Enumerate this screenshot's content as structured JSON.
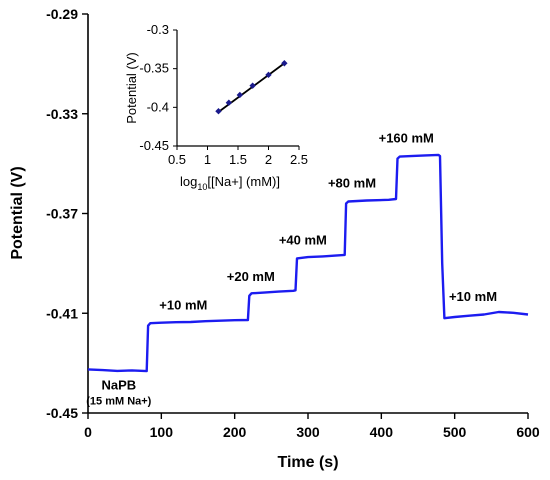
{
  "colors": {
    "trace": "#1c1cf0",
    "fit": "#000000",
    "marker": "#1a1a8c",
    "axis": "#000000"
  },
  "chart_data": [
    {
      "type": "line",
      "xlabel": "Time (s)",
      "ylabel": "Potential (V)",
      "xlim": [
        0,
        600
      ],
      "ylim": [
        -0.45,
        -0.29
      ],
      "xticks": [
        "0",
        "100",
        "200",
        "300",
        "400",
        "500",
        "600"
      ],
      "yticks": [
        "-0.29",
        "-0.33",
        "-0.37",
        "-0.41",
        "-0.45"
      ],
      "grid": false,
      "series": [
        {
          "x": [
            0,
            20,
            40,
            60,
            80,
            82,
            85,
            100,
            120,
            140,
            160,
            180,
            200,
            218,
            220,
            223,
            240,
            260,
            280,
            283,
            285,
            300,
            320,
            340,
            350,
            352,
            355,
            380,
            410,
            420,
            422,
            425,
            440,
            460,
            478,
            480,
            483,
            486,
            500,
            520,
            540,
            560,
            580,
            600
          ],
          "y": [
            -0.4325,
            -0.4328,
            -0.4331,
            -0.4329,
            -0.4332,
            -0.415,
            -0.414,
            -0.4138,
            -0.4136,
            -0.4135,
            -0.4132,
            -0.413,
            -0.4128,
            -0.4127,
            -0.403,
            -0.402,
            -0.4017,
            -0.4013,
            -0.401,
            -0.4008,
            -0.388,
            -0.3875,
            -0.3872,
            -0.3868,
            -0.3866,
            -0.366,
            -0.3652,
            -0.3648,
            -0.3645,
            -0.3642,
            -0.348,
            -0.3472,
            -0.347,
            -0.3467,
            -0.3465,
            -0.347,
            -0.39,
            -0.412,
            -0.4115,
            -0.411,
            -0.4105,
            -0.4095,
            -0.4098,
            -0.4105
          ]
        }
      ],
      "annotations": [
        {
          "text": "NaPB",
          "x": 42,
          "y": -0.4405
        },
        {
          "text": "(15 mM Na+)",
          "x": 42,
          "y": -0.4465
        },
        {
          "text": "+10 mM",
          "x": 130,
          "y": -0.4085
        },
        {
          "text": "+20 mM",
          "x": 222,
          "y": -0.397
        },
        {
          "text": "+40 mM",
          "x": 293,
          "y": -0.3825
        },
        {
          "text": "+80 mM",
          "x": 360,
          "y": -0.3595
        },
        {
          "text": "+160 mM",
          "x": 434,
          "y": -0.3415
        },
        {
          "text": "+10 mM",
          "x": 525,
          "y": -0.405
        }
      ]
    },
    {
      "type": "scatter",
      "xlabel": "log10[[Na+] (mM)]",
      "ylabel": "Potential (V)",
      "xlim": [
        0.5,
        2.5
      ],
      "ylim": [
        -0.45,
        -0.3
      ],
      "xticks": [
        "0.5",
        "1",
        "1.5",
        "2",
        "2.5"
      ],
      "yticks": [
        "-0.3",
        "-0.35",
        "-0.4",
        "-0.45"
      ],
      "series": [
        {
          "x": [
            1.18,
            1.35,
            1.53,
            1.74,
            2.0,
            2.26
          ],
          "y": [
            -0.405,
            -0.394,
            -0.384,
            -0.372,
            -0.358,
            -0.343
          ]
        }
      ],
      "fit_line": {
        "x": [
          1.18,
          2.26
        ],
        "y": [
          -0.406,
          -0.343
        ]
      }
    }
  ]
}
